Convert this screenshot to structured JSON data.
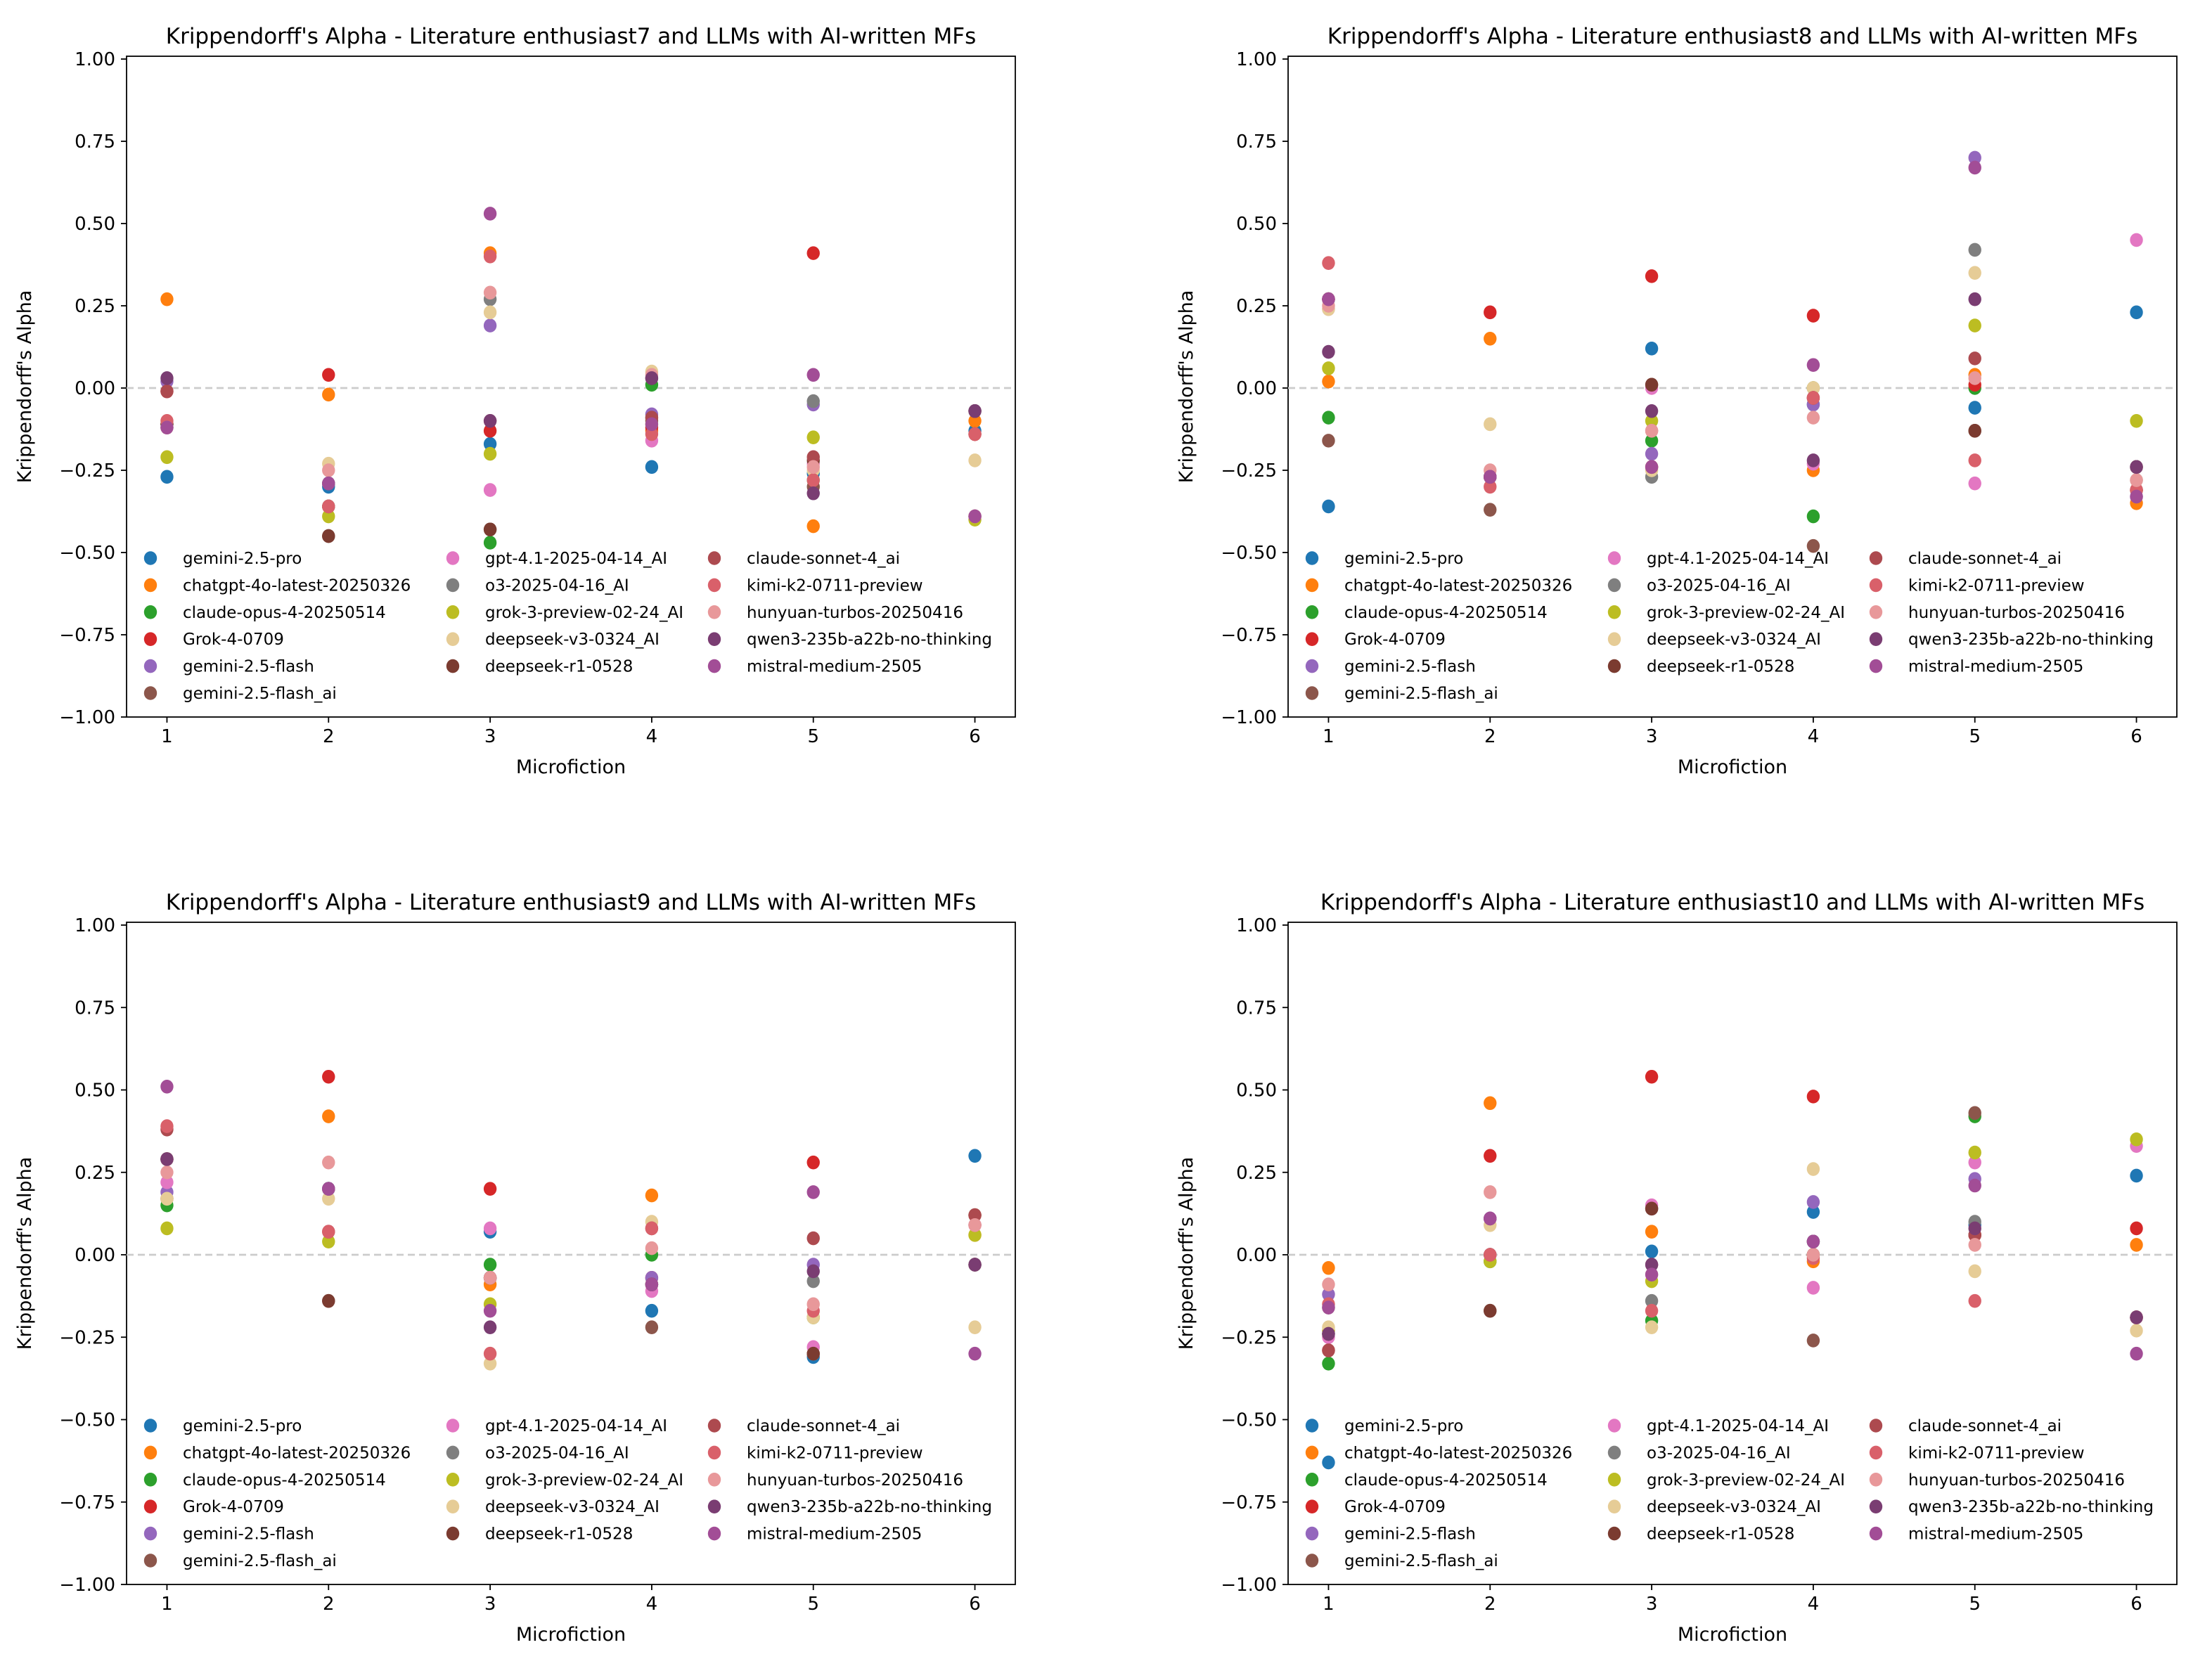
{
  "chart_data": {
    "type": "scatter",
    "series_names": [
      "gemini-2.5-pro",
      "chatgpt-4o-latest-20250326",
      "claude-opus-4-20250514",
      "Grok-4-0709",
      "gemini-2.5-flash",
      "gemini-2.5-flash_ai",
      "gpt-4.1-2025-04-14_AI",
      "o3-2025-04-16_AI",
      "grok-3-preview-02-24_AI",
      "deepseek-v3-0324_AI",
      "deepseek-r1-0528",
      "claude-sonnet-4_ai",
      "kimi-k2-0711-preview",
      "hunyuan-turbos-20250416",
      "qwen3-235b-a22b-no-thinking",
      "mistral-medium-2505"
    ],
    "colors": [
      "#1f77b4",
      "#ff7f0e",
      "#2ca02c",
      "#d62728",
      "#9467bd",
      "#8c564b",
      "#e377c2",
      "#7f7f7f",
      "#bcbd22",
      "#e6cc96",
      "#7b3b30",
      "#ad4a4f",
      "#d9606a",
      "#e8989a",
      "#7a3d72",
      "#a24d96"
    ],
    "panels": [
      {
        "title": "Krippendorff's Alpha - Literature enthusiast7 and LLMs with AI-written MFs",
        "xlabel": "Microfiction",
        "ylabel": "Krippendorff's Alpha",
        "x": [
          1,
          2,
          3,
          4,
          5,
          6
        ],
        "xticks": [
          "1",
          "2",
          "3",
          "4",
          "5",
          "6"
        ],
        "ylim": [
          -1,
          1
        ],
        "yticks": [
          "1.00",
          "0.75",
          "0.50",
          "0.25",
          "0.00",
          "−0.25",
          "−0.50",
          "−0.75",
          "−1.00"
        ],
        "reference_line": 0,
        "legend": "lower-left",
        "values": [
          [
            -0.27,
            -0.3,
            -0.17,
            -0.24,
            -0.26,
            -0.13
          ],
          [
            0.27,
            -0.02,
            0.41,
            -0.13,
            -0.42,
            -0.1
          ],
          [
            -0.11,
            -0.36,
            -0.47,
            0.01,
            -0.28,
            -0.39
          ],
          [
            -0.01,
            0.04,
            -0.13,
            -0.12,
            0.41,
            -0.14
          ],
          [
            0.02,
            -0.29,
            0.19,
            -0.08,
            -0.05,
            -0.07
          ],
          [
            -0.11,
            -0.45,
            -0.43,
            -0.1,
            -0.3,
            -0.39
          ],
          [
            -0.12,
            -0.29,
            -0.31,
            -0.16,
            -0.23,
            -0.39
          ],
          [
            -0.12,
            -0.29,
            0.27,
            -0.09,
            -0.04,
            -0.07
          ],
          [
            -0.21,
            -0.39,
            -0.2,
            -0.11,
            -0.15,
            -0.4
          ],
          [
            -0.12,
            -0.23,
            0.23,
            0.05,
            -0.25,
            -0.22
          ],
          [
            -0.11,
            -0.45,
            -0.43,
            0.03,
            -0.22,
            -0.07
          ],
          [
            -0.01,
            -0.36,
            -0.1,
            -0.09,
            -0.21,
            -0.14
          ],
          [
            -0.1,
            -0.36,
            0.4,
            -0.14,
            -0.28,
            -0.14
          ],
          [
            -0.12,
            -0.25,
            0.29,
            0.04,
            -0.24,
            -0.39
          ],
          [
            0.03,
            -0.29,
            -0.1,
            0.03,
            -0.32,
            -0.07
          ],
          [
            -0.12,
            -0.29,
            0.53,
            -0.11,
            0.04,
            -0.39
          ]
        ]
      },
      {
        "title": "Krippendorff's Alpha - Literature enthusiast8 and LLMs with AI-written MFs",
        "xlabel": "Microfiction",
        "ylabel": "Krippendorff's Alpha",
        "x": [
          1,
          2,
          3,
          4,
          5,
          6
        ],
        "xticks": [
          "1",
          "2",
          "3",
          "4",
          "5",
          "6"
        ],
        "ylim": [
          -1,
          1
        ],
        "yticks": [
          "1.00",
          "0.75",
          "0.50",
          "0.25",
          "0.00",
          "−0.25",
          "−0.50",
          "−0.75",
          "−1.00"
        ],
        "reference_line": 0,
        "legend": "lower-left",
        "values": [
          [
            -0.36,
            -0.27,
            0.12,
            -0.05,
            -0.06,
            0.23
          ],
          [
            0.02,
            0.15,
            -0.24,
            -0.25,
            0.04,
            -0.35
          ],
          [
            -0.09,
            -0.27,
            -0.16,
            -0.39,
            0.0,
            -0.31
          ],
          [
            0.27,
            0.23,
            0.34,
            0.22,
            0.01,
            -0.31
          ],
          [
            0.27,
            -0.27,
            -0.2,
            -0.05,
            0.7,
            -0.33
          ],
          [
            -0.16,
            -0.37,
            0.01,
            -0.48,
            -0.13,
            -0.24
          ],
          [
            0.24,
            -0.27,
            0.0,
            -0.23,
            -0.29,
            0.45
          ],
          [
            0.27,
            -0.27,
            -0.27,
            0.0,
            0.42,
            -0.28
          ],
          [
            0.06,
            -0.27,
            -0.1,
            0.0,
            0.19,
            -0.1
          ],
          [
            0.24,
            -0.11,
            -0.25,
            0.0,
            0.35,
            -0.28
          ],
          [
            0.27,
            -0.27,
            0.01,
            -0.03,
            -0.13,
            -0.24
          ],
          [
            0.27,
            -0.27,
            -0.24,
            -0.03,
            0.09,
            -0.31
          ],
          [
            0.38,
            -0.3,
            -0.13,
            -0.03,
            -0.22,
            -0.31
          ],
          [
            0.25,
            -0.25,
            -0.13,
            -0.09,
            0.03,
            -0.28
          ],
          [
            0.11,
            -0.27,
            -0.07,
            -0.22,
            0.27,
            -0.24
          ],
          [
            0.27,
            -0.27,
            -0.24,
            0.07,
            0.67,
            -0.33
          ]
        ]
      },
      {
        "title": "Krippendorff's Alpha - Literature enthusiast9 and LLMs with AI-written MFs",
        "xlabel": "Microfiction",
        "ylabel": "Krippendorff's Alpha",
        "x": [
          1,
          2,
          3,
          4,
          5,
          6
        ],
        "xticks": [
          "1",
          "2",
          "3",
          "4",
          "5",
          "6"
        ],
        "ylim": [
          -1,
          1
        ],
        "yticks": [
          "1.00",
          "0.75",
          "0.50",
          "0.25",
          "0.00",
          "−0.25",
          "−0.50",
          "−0.75",
          "−1.00"
        ],
        "reference_line": 0,
        "legend": "lower-left",
        "values": [
          [
            0.17,
            0.2,
            0.07,
            -0.17,
            -0.31,
            0.3
          ],
          [
            0.17,
            0.42,
            -0.09,
            0.18,
            -0.3,
            0.06
          ],
          [
            0.15,
            0.2,
            -0.03,
            0.0,
            -0.19,
            0.12
          ],
          [
            0.29,
            0.54,
            0.2,
            -0.07,
            0.28,
            0.12
          ],
          [
            0.19,
            0.2,
            -0.07,
            -0.07,
            -0.03,
            0.09
          ],
          [
            0.29,
            -0.14,
            -0.07,
            -0.22,
            -0.3,
            -0.03
          ],
          [
            0.22,
            0.2,
            0.08,
            -0.11,
            -0.28,
            0.09
          ],
          [
            0.29,
            0.2,
            -0.07,
            -0.09,
            -0.08,
            -0.03
          ],
          [
            0.08,
            0.04,
            -0.15,
            -0.09,
            -0.19,
            0.06
          ],
          [
            0.17,
            0.17,
            -0.33,
            0.1,
            -0.19,
            -0.22
          ],
          [
            0.29,
            -0.14,
            -0.07,
            -0.09,
            -0.3,
            -0.03
          ],
          [
            0.38,
            0.07,
            -0.07,
            0.08,
            0.05,
            0.12
          ],
          [
            0.39,
            0.07,
            -0.3,
            0.08,
            -0.17,
            0.09
          ],
          [
            0.25,
            0.28,
            -0.07,
            0.02,
            -0.15,
            0.09
          ],
          [
            0.29,
            0.2,
            -0.22,
            -0.09,
            -0.05,
            -0.03
          ],
          [
            0.51,
            0.2,
            -0.17,
            -0.09,
            0.19,
            -0.3
          ]
        ]
      },
      {
        "title": "Krippendorff's Alpha - Literature enthusiast10 and LLMs with AI-written MFs",
        "xlabel": "Microfiction",
        "ylabel": "Krippendorff's Alpha",
        "x": [
          1,
          2,
          3,
          4,
          5,
          6
        ],
        "xticks": [
          "1",
          "2",
          "3",
          "4",
          "5",
          "6"
        ],
        "ylim": [
          -1,
          1
        ],
        "yticks": [
          "1.00",
          "0.75",
          "0.50",
          "0.25",
          "0.00",
          "−0.25",
          "−0.50",
          "−0.75",
          "−1.00"
        ],
        "reference_line": 0,
        "legend": "lower-left",
        "values": [
          [
            -0.63,
            0.0,
            0.01,
            0.13,
            0.09,
            0.24
          ],
          [
            -0.04,
            0.46,
            0.07,
            -0.02,
            0.06,
            0.03
          ],
          [
            -0.33,
            -0.02,
            -0.2,
            0.04,
            0.42,
            -0.19
          ],
          [
            -0.29,
            0.3,
            0.54,
            0.48,
            0.06,
            0.08
          ],
          [
            -0.12,
            0.11,
            0.14,
            0.16,
            0.23,
            -0.19
          ],
          [
            -0.16,
            -0.17,
            0.14,
            -0.26,
            0.43,
            -0.19
          ],
          [
            -0.25,
            0.11,
            0.15,
            -0.1,
            0.28,
            0.33
          ],
          [
            -0.24,
            0.0,
            -0.14,
            0.04,
            0.1,
            -0.19
          ],
          [
            -0.23,
            -0.02,
            -0.08,
            0.0,
            0.31,
            0.35
          ],
          [
            -0.22,
            0.09,
            -0.22,
            0.26,
            -0.05,
            -0.23
          ],
          [
            -0.24,
            -0.17,
            0.14,
            0.0,
            0.06,
            -0.19
          ],
          [
            -0.29,
            0.0,
            -0.03,
            0.0,
            0.06,
            -0.19
          ],
          [
            -0.15,
            0.0,
            -0.17,
            -0.01,
            -0.14,
            -0.19
          ],
          [
            -0.09,
            0.19,
            -0.06,
            0.0,
            0.03,
            -0.19
          ],
          [
            -0.24,
            0.11,
            -0.03,
            0.04,
            0.08,
            -0.19
          ],
          [
            -0.16,
            0.11,
            -0.06,
            0.04,
            0.21,
            -0.3
          ]
        ]
      }
    ]
  }
}
